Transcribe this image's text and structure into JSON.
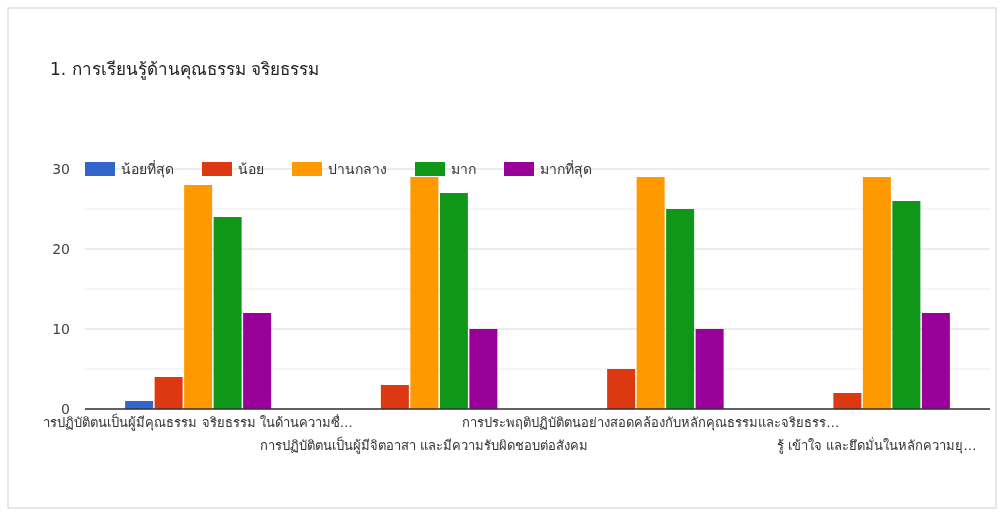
{
  "chart_data": {
    "type": "bar",
    "title": "1. การเรียนรู้ด้านคุณธรรม จริยธรรม",
    "categories": [
      "ารปฏิบัติตนเป็นผู้มีคุณธรรม จริยธรรม ในด้านความซื่…",
      "การปฏิบัติตนเป็นผู้มีจิตอาสา และมีความรับผิดชอบต่อสังคม",
      "การประพฤติปฏิบัติตนอย่างสอดคล้องกับหลักคุณธรรมและจริยธรร…",
      "รู้ เข้าใจ และยึดมั่นในหลักความยุ…"
    ],
    "series": [
      {
        "name": "น้อยที่สุด",
        "color": "#3366cc",
        "values": [
          1,
          0,
          0,
          0
        ]
      },
      {
        "name": "น้อย",
        "color": "#dc3912",
        "values": [
          4,
          3,
          5,
          2
        ]
      },
      {
        "name": "ปานกลาง",
        "color": "#ff9900",
        "values": [
          28,
          29,
          29,
          29
        ]
      },
      {
        "name": "มาก",
        "color": "#109618",
        "values": [
          24,
          27,
          25,
          26
        ]
      },
      {
        "name": "มากที่สุด",
        "color": "#990099",
        "values": [
          12,
          10,
          10,
          12
        ]
      }
    ],
    "ylim": [
      0,
      30
    ],
    "yticks": [
      0,
      {
        "value": 5,
        "label": null
      },
      10,
      {
        "value": 15,
        "label": null
      },
      20,
      {
        "value": 25,
        "label": null
      },
      30
    ],
    "grid": "y",
    "legend": "top"
  }
}
